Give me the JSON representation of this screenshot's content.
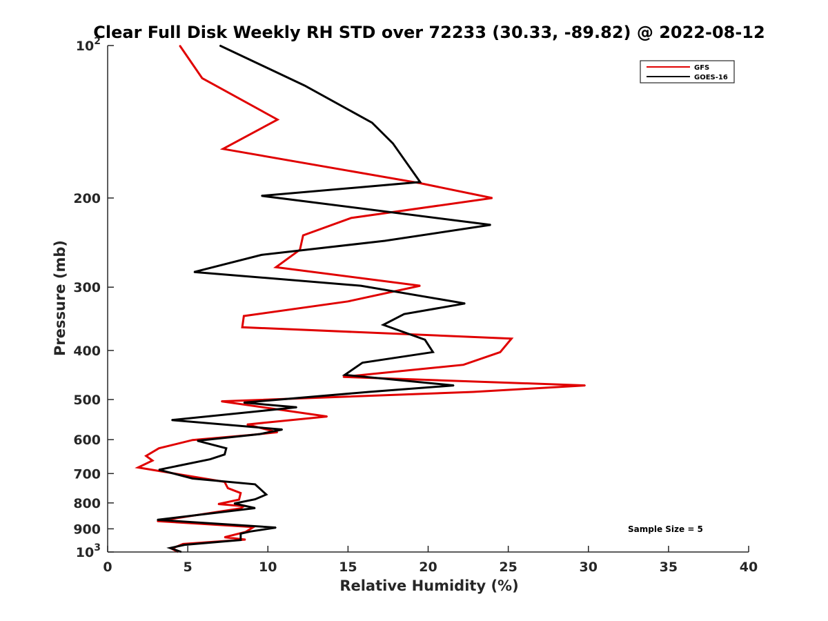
{
  "chart_data": {
    "type": "line",
    "title": "Clear Full Disk Weekly RH STD over 72233 (30.33, -89.82) @ 2022-08-12",
    "xlabel": "Relative Humidity (%)",
    "ylabel": "Pressure (mb)",
    "xlim": [
      0,
      40
    ],
    "ylim": [
      100,
      1000
    ],
    "y_scale": "log",
    "y_reversed": true,
    "x_ticks": [
      "0",
      "5",
      "10",
      "15",
      "20",
      "25",
      "30",
      "35",
      "40"
    ],
    "y_ticks": [
      {
        "value": 100,
        "label": "10",
        "sup": "2"
      },
      {
        "value": 200,
        "label": "200",
        "sup": ""
      },
      {
        "value": 300,
        "label": "300",
        "sup": ""
      },
      {
        "value": 400,
        "label": "400",
        "sup": ""
      },
      {
        "value": 500,
        "label": "500",
        "sup": ""
      },
      {
        "value": 600,
        "label": "600",
        "sup": ""
      },
      {
        "value": 700,
        "label": "700",
        "sup": ""
      },
      {
        "value": 800,
        "label": "800",
        "sup": ""
      },
      {
        "value": 900,
        "label": "900",
        "sup": ""
      },
      {
        "value": 1000,
        "label": "10",
        "sup": "3"
      }
    ],
    "grid": false,
    "legend": "top-right",
    "annotation": "Sample Size = 5",
    "series": [
      {
        "name": "GFS",
        "color": "#e00000",
        "points": [
          [
            4.5,
            100
          ],
          [
            5.9,
            116
          ],
          [
            10.6,
            140
          ],
          [
            7.2,
            160
          ],
          [
            19.5,
            187
          ],
          [
            24.0,
            200
          ],
          [
            15.2,
            219
          ],
          [
            12.2,
            237
          ],
          [
            12.0,
            253
          ],
          [
            10.5,
            274
          ],
          [
            19.5,
            298
          ],
          [
            15.0,
            320
          ],
          [
            8.5,
            342
          ],
          [
            8.4,
            360
          ],
          [
            25.2,
            379
          ],
          [
            24.5,
            403
          ],
          [
            22.2,
            427
          ],
          [
            14.7,
            451
          ],
          [
            29.8,
            469
          ],
          [
            22.8,
            483
          ],
          [
            7.1,
            504
          ],
          [
            13.7,
            540
          ],
          [
            8.7,
            560
          ],
          [
            10.6,
            580
          ],
          [
            9.0,
            587
          ],
          [
            5.3,
            601
          ],
          [
            3.2,
            624
          ],
          [
            2.4,
            646
          ],
          [
            2.8,
            660
          ],
          [
            1.9,
            681
          ],
          [
            7.3,
            727
          ],
          [
            7.5,
            748
          ],
          [
            8.3,
            765
          ],
          [
            8.2,
            788
          ],
          [
            6.9,
            804
          ],
          [
            8.5,
            812
          ],
          [
            8.3,
            820
          ],
          [
            3.1,
            869
          ],
          [
            9.1,
            893
          ],
          [
            8.6,
            913
          ],
          [
            7.3,
            935
          ],
          [
            8.6,
            945
          ],
          [
            4.7,
            964
          ],
          [
            4.0,
            985
          ],
          [
            4.4,
            1000
          ]
        ]
      },
      {
        "name": "GOES-16",
        "color": "#000000",
        "points": [
          [
            7.0,
            100
          ],
          [
            12.3,
            120
          ],
          [
            16.5,
            142
          ],
          [
            17.8,
            156
          ],
          [
            19.5,
            186
          ],
          [
            9.6,
            198
          ],
          [
            23.9,
            226
          ],
          [
            17.3,
            243
          ],
          [
            9.6,
            259
          ],
          [
            5.4,
            280
          ],
          [
            15.8,
            298
          ],
          [
            22.3,
            323
          ],
          [
            18.5,
            339
          ],
          [
            17.2,
            356
          ],
          [
            19.8,
            381
          ],
          [
            20.3,
            403
          ],
          [
            15.9,
            423
          ],
          [
            14.8,
            447
          ],
          [
            21.6,
            469
          ],
          [
            16.3,
            483
          ],
          [
            8.5,
            507
          ],
          [
            11.8,
            518
          ],
          [
            4.0,
            549
          ],
          [
            10.9,
            573
          ],
          [
            9.5,
            585
          ],
          [
            5.6,
            603
          ],
          [
            7.4,
            624
          ],
          [
            7.3,
            642
          ],
          [
            6.4,
            656
          ],
          [
            3.2,
            688
          ],
          [
            5.3,
            716
          ],
          [
            9.2,
            735
          ],
          [
            9.9,
            770
          ],
          [
            9.2,
            787
          ],
          [
            7.9,
            802
          ],
          [
            9.2,
            819
          ],
          [
            3.1,
            864
          ],
          [
            10.5,
            895
          ],
          [
            8.9,
            911
          ],
          [
            8.3,
            920
          ],
          [
            8.3,
            947
          ],
          [
            4.8,
            968
          ],
          [
            3.9,
            982
          ],
          [
            4.6,
            1000
          ]
        ]
      }
    ]
  }
}
